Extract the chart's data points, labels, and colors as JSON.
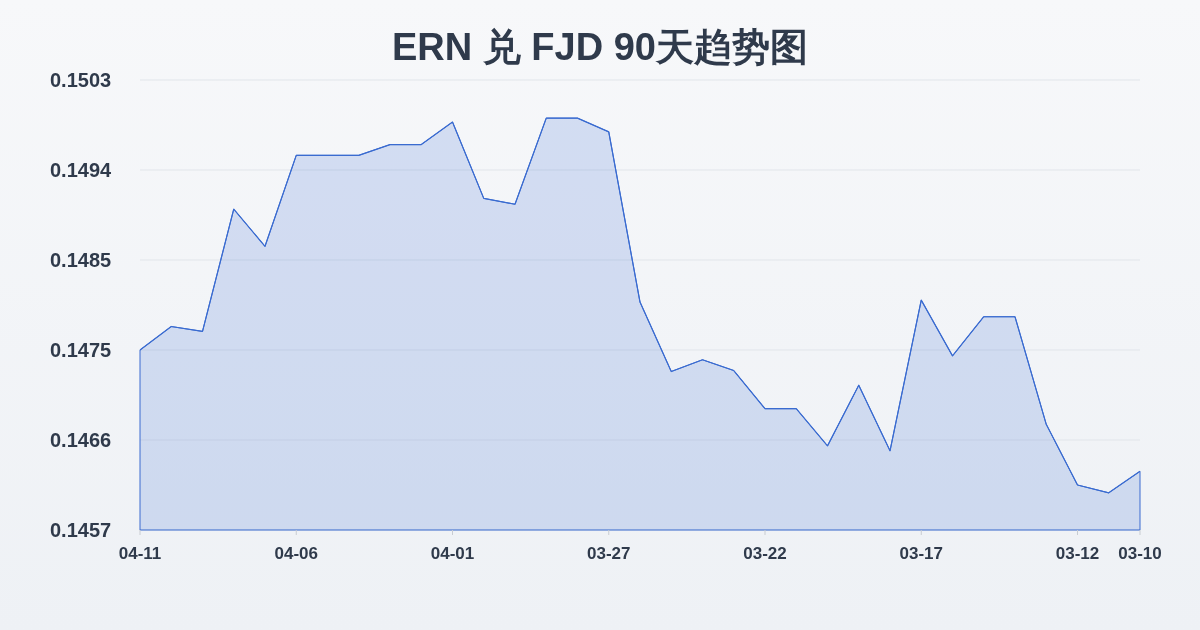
{
  "chart_data": {
    "type": "area",
    "title": "ERN 兑 FJD 90天趋势图",
    "categories": [
      "04-11",
      null,
      null,
      null,
      null,
      "04-06",
      null,
      null,
      null,
      null,
      "04-01",
      null,
      null,
      null,
      null,
      "03-27",
      null,
      null,
      null,
      null,
      "03-22",
      null,
      null,
      null,
      null,
      "03-17",
      null,
      null,
      null,
      null,
      "03-12",
      null,
      "03-10"
    ],
    "values": [
      0.14754,
      0.14778,
      0.14773,
      0.14898,
      0.1486,
      0.14953,
      0.14953,
      0.14953,
      0.14964,
      0.14964,
      0.14987,
      0.14909,
      0.14903,
      0.14991,
      0.14991,
      0.14977,
      0.14803,
      0.14732,
      0.14744,
      0.14733,
      0.14694,
      0.14694,
      0.14656,
      0.14718,
      0.14651,
      0.14805,
      0.14748,
      0.14788,
      0.14788,
      0.14678,
      0.14616,
      0.14608,
      0.1463
    ],
    "color": "#3a6bd0",
    "ylim": [
      0.1457,
      0.1503
    ],
    "yticks": [
      {
        "value": 0.1457,
        "label": "0.1457"
      },
      {
        "value": 0.14662,
        "label": "0.1466"
      },
      {
        "value": 0.14754,
        "label": "0.1475"
      },
      {
        "value": 0.14846,
        "label": "0.1485"
      },
      {
        "value": 0.14938,
        "label": "0.1494"
      },
      {
        "value": 0.1503,
        "label": "0.1503"
      }
    ],
    "grid": "y"
  }
}
